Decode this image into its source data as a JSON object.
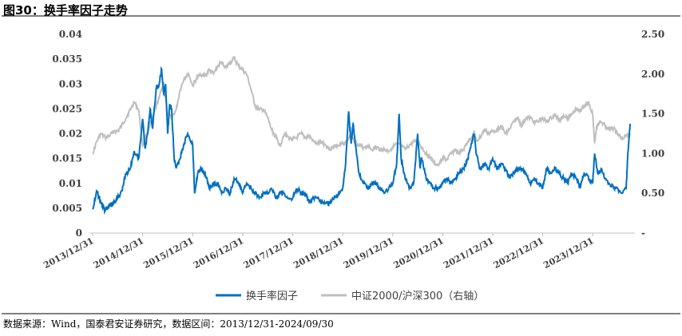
{
  "title": "图30：换手率因子走势",
  "source": "数据来源：Wind，国泰君安证券研究，数据区间：2013/12/31-2024/09/30",
  "colors": {
    "factor": "#0070C0",
    "index": "#BFBFBF",
    "axis": "#BFBFBF",
    "text": "#404040"
  },
  "chart_data": {
    "type": "line",
    "x_ticks": [
      "2013/12/31",
      "2014/12/31",
      "2015/12/31",
      "2016/12/31",
      "2017/12/31",
      "2018/12/31",
      "2019/12/31",
      "2020/12/31",
      "2021/12/31",
      "2022/12/31",
      "2023/12/31"
    ],
    "x_range": [
      "2013/12/31",
      "2024/09/30"
    ],
    "y_left": {
      "ticks": [
        "0.04",
        "0.035",
        "0.03",
        "0.025",
        "0.02",
        "0.015",
        "0.01",
        "0.005",
        "0"
      ],
      "range": [
        0,
        0.04
      ]
    },
    "y_right": {
      "ticks": [
        "2.50",
        "2.00",
        "1.50",
        "1.00",
        "0.50",
        "-"
      ],
      "range": [
        0,
        2.5
      ]
    },
    "grid": false,
    "legend": "bottom",
    "series": [
      {
        "name": "换手率因子",
        "axis": "left",
        "points": [
          [
            2014.0,
            0.0048
          ],
          [
            2014.08,
            0.0085
          ],
          [
            2014.17,
            0.006
          ],
          [
            2014.25,
            0.0045
          ],
          [
            2014.33,
            0.0055
          ],
          [
            2014.42,
            0.006
          ],
          [
            2014.5,
            0.007
          ],
          [
            2014.58,
            0.0085
          ],
          [
            2014.67,
            0.012
          ],
          [
            2014.75,
            0.013
          ],
          [
            2014.83,
            0.0165
          ],
          [
            2014.92,
            0.015
          ],
          [
            2015.0,
            0.023
          ],
          [
            2015.05,
            0.017
          ],
          [
            2015.1,
            0.02
          ],
          [
            2015.15,
            0.025
          ],
          [
            2015.2,
            0.021
          ],
          [
            2015.27,
            0.029
          ],
          [
            2015.33,
            0.03
          ],
          [
            2015.38,
            0.033
          ],
          [
            2015.42,
            0.028
          ],
          [
            2015.46,
            0.03
          ],
          [
            2015.5,
            0.02
          ],
          [
            2015.54,
            0.026
          ],
          [
            2015.58,
            0.025
          ],
          [
            2015.63,
            0.015
          ],
          [
            2015.67,
            0.013
          ],
          [
            2015.75,
            0.015
          ],
          [
            2015.83,
            0.018
          ],
          [
            2015.9,
            0.02
          ],
          [
            2016.0,
            0.018
          ],
          [
            2016.04,
            0.008
          ],
          [
            2016.1,
            0.012
          ],
          [
            2016.17,
            0.013
          ],
          [
            2016.25,
            0.012
          ],
          [
            2016.33,
            0.009
          ],
          [
            2016.42,
            0.01
          ],
          [
            2016.5,
            0.01
          ],
          [
            2016.58,
            0.008
          ],
          [
            2016.67,
            0.009
          ],
          [
            2016.75,
            0.008
          ],
          [
            2016.83,
            0.011
          ],
          [
            2016.92,
            0.01
          ],
          [
            2017.0,
            0.008
          ],
          [
            2017.08,
            0.01
          ],
          [
            2017.17,
            0.009
          ],
          [
            2017.25,
            0.008
          ],
          [
            2017.33,
            0.007
          ],
          [
            2017.42,
            0.008
          ],
          [
            2017.5,
            0.008
          ],
          [
            2017.58,
            0.009
          ],
          [
            2017.67,
            0.007
          ],
          [
            2017.75,
            0.008
          ],
          [
            2017.83,
            0.008
          ],
          [
            2017.92,
            0.007
          ],
          [
            2018.0,
            0.007
          ],
          [
            2018.08,
            0.009
          ],
          [
            2018.17,
            0.008
          ],
          [
            2018.25,
            0.008
          ],
          [
            2018.33,
            0.006
          ],
          [
            2018.42,
            0.007
          ],
          [
            2018.5,
            0.007
          ],
          [
            2018.58,
            0.006
          ],
          [
            2018.67,
            0.006
          ],
          [
            2018.75,
            0.006
          ],
          [
            2018.83,
            0.007
          ],
          [
            2018.92,
            0.008
          ],
          [
            2019.0,
            0.009
          ],
          [
            2019.06,
            0.014
          ],
          [
            2019.12,
            0.0245
          ],
          [
            2019.17,
            0.018
          ],
          [
            2019.21,
            0.022
          ],
          [
            2019.25,
            0.018
          ],
          [
            2019.33,
            0.012
          ],
          [
            2019.42,
            0.01
          ],
          [
            2019.5,
            0.009
          ],
          [
            2019.58,
            0.01
          ],
          [
            2019.67,
            0.01
          ],
          [
            2019.75,
            0.009
          ],
          [
            2019.83,
            0.008
          ],
          [
            2019.92,
            0.009
          ],
          [
            2020.0,
            0.01
          ],
          [
            2020.08,
            0.014
          ],
          [
            2020.13,
            0.024
          ],
          [
            2020.17,
            0.015
          ],
          [
            2020.25,
            0.011
          ],
          [
            2020.33,
            0.009
          ],
          [
            2020.42,
            0.01
          ],
          [
            2020.5,
            0.02
          ],
          [
            2020.55,
            0.013
          ],
          [
            2020.58,
            0.015
          ],
          [
            2020.67,
            0.011
          ],
          [
            2020.75,
            0.01
          ],
          [
            2020.83,
            0.009
          ],
          [
            2020.92,
            0.009
          ],
          [
            2021.0,
            0.01
          ],
          [
            2021.08,
            0.011
          ],
          [
            2021.17,
            0.01
          ],
          [
            2021.25,
            0.011
          ],
          [
            2021.33,
            0.012
          ],
          [
            2021.42,
            0.013
          ],
          [
            2021.5,
            0.015
          ],
          [
            2021.58,
            0.018
          ],
          [
            2021.63,
            0.02
          ],
          [
            2021.67,
            0.016
          ],
          [
            2021.75,
            0.013
          ],
          [
            2021.83,
            0.014
          ],
          [
            2021.92,
            0.013
          ],
          [
            2022.0,
            0.015
          ],
          [
            2022.08,
            0.013
          ],
          [
            2022.17,
            0.014
          ],
          [
            2022.25,
            0.013
          ],
          [
            2022.33,
            0.011
          ],
          [
            2022.42,
            0.012
          ],
          [
            2022.5,
            0.013
          ],
          [
            2022.58,
            0.013
          ],
          [
            2022.67,
            0.012
          ],
          [
            2022.75,
            0.01
          ],
          [
            2022.83,
            0.011
          ],
          [
            2022.92,
            0.01
          ],
          [
            2023.0,
            0.009
          ],
          [
            2023.08,
            0.013
          ],
          [
            2023.17,
            0.012
          ],
          [
            2023.25,
            0.013
          ],
          [
            2023.33,
            0.012
          ],
          [
            2023.42,
            0.011
          ],
          [
            2023.5,
            0.01
          ],
          [
            2023.58,
            0.012
          ],
          [
            2023.67,
            0.011
          ],
          [
            2023.75,
            0.009
          ],
          [
            2023.83,
            0.012
          ],
          [
            2023.92,
            0.011
          ],
          [
            2024.0,
            0.01
          ],
          [
            2024.04,
            0.016
          ],
          [
            2024.1,
            0.012
          ],
          [
            2024.17,
            0.013
          ],
          [
            2024.25,
            0.011
          ],
          [
            2024.33,
            0.01
          ],
          [
            2024.42,
            0.009
          ],
          [
            2024.5,
            0.009
          ],
          [
            2024.58,
            0.008
          ],
          [
            2024.67,
            0.009
          ],
          [
            2024.7,
            0.015
          ],
          [
            2024.75,
            0.022
          ]
        ]
      },
      {
        "name": "中证2000/沪深300（右轴）",
        "axis": "right",
        "points": [
          [
            2014.0,
            1.0
          ],
          [
            2014.08,
            1.15
          ],
          [
            2014.17,
            1.25
          ],
          [
            2014.25,
            1.2
          ],
          [
            2014.33,
            1.22
          ],
          [
            2014.42,
            1.28
          ],
          [
            2014.5,
            1.28
          ],
          [
            2014.58,
            1.35
          ],
          [
            2014.67,
            1.45
          ],
          [
            2014.75,
            1.55
          ],
          [
            2014.83,
            1.65
          ],
          [
            2014.92,
            1.55
          ],
          [
            2015.0,
            1.1
          ],
          [
            2015.08,
            1.25
          ],
          [
            2015.17,
            1.4
          ],
          [
            2015.25,
            1.55
          ],
          [
            2015.33,
            1.7
          ],
          [
            2015.42,
            1.9
          ],
          [
            2015.5,
            1.5
          ],
          [
            2015.58,
            1.45
          ],
          [
            2015.67,
            1.55
          ],
          [
            2015.75,
            1.8
          ],
          [
            2015.83,
            1.95
          ],
          [
            2015.92,
            2.0
          ],
          [
            2016.0,
            1.85
          ],
          [
            2016.08,
            1.95
          ],
          [
            2016.17,
            2.0
          ],
          [
            2016.25,
            1.98
          ],
          [
            2016.33,
            2.05
          ],
          [
            2016.42,
            2.0
          ],
          [
            2016.5,
            2.1
          ],
          [
            2016.58,
            2.15
          ],
          [
            2016.67,
            2.08
          ],
          [
            2016.75,
            2.15
          ],
          [
            2016.83,
            2.2
          ],
          [
            2016.92,
            2.1
          ],
          [
            2017.0,
            2.05
          ],
          [
            2017.08,
            2.0
          ],
          [
            2017.17,
            1.8
          ],
          [
            2017.25,
            1.6
          ],
          [
            2017.33,
            1.55
          ],
          [
            2017.42,
            1.55
          ],
          [
            2017.5,
            1.45
          ],
          [
            2017.58,
            1.3
          ],
          [
            2017.67,
            1.2
          ],
          [
            2017.75,
            1.1
          ],
          [
            2017.83,
            1.25
          ],
          [
            2017.92,
            1.2
          ],
          [
            2018.0,
            1.18
          ],
          [
            2018.08,
            1.2
          ],
          [
            2018.17,
            1.25
          ],
          [
            2018.25,
            1.2
          ],
          [
            2018.33,
            1.22
          ],
          [
            2018.42,
            1.15
          ],
          [
            2018.5,
            1.12
          ],
          [
            2018.58,
            1.15
          ],
          [
            2018.67,
            1.1
          ],
          [
            2018.75,
            1.05
          ],
          [
            2018.83,
            1.1
          ],
          [
            2018.92,
            1.1
          ],
          [
            2019.0,
            1.12
          ],
          [
            2019.08,
            1.15
          ],
          [
            2019.17,
            1.25
          ],
          [
            2019.25,
            1.15
          ],
          [
            2019.33,
            1.1
          ],
          [
            2019.42,
            1.08
          ],
          [
            2019.5,
            1.1
          ],
          [
            2019.58,
            1.05
          ],
          [
            2019.67,
            1.08
          ],
          [
            2019.75,
            1.05
          ],
          [
            2019.83,
            1.05
          ],
          [
            2019.92,
            1.03
          ],
          [
            2020.0,
            1.08
          ],
          [
            2020.08,
            1.12
          ],
          [
            2020.17,
            1.1
          ],
          [
            2020.25,
            1.05
          ],
          [
            2020.33,
            1.1
          ],
          [
            2020.42,
            1.15
          ],
          [
            2020.5,
            1.15
          ],
          [
            2020.58,
            1.08
          ],
          [
            2020.67,
            1.0
          ],
          [
            2020.75,
            0.95
          ],
          [
            2020.83,
            0.88
          ],
          [
            2020.92,
            0.85
          ],
          [
            2021.0,
            0.95
          ],
          [
            2021.08,
            0.92
          ],
          [
            2021.17,
            1.0
          ],
          [
            2021.25,
            1.05
          ],
          [
            2021.33,
            1.0
          ],
          [
            2021.42,
            1.05
          ],
          [
            2021.5,
            1.15
          ],
          [
            2021.58,
            1.2
          ],
          [
            2021.63,
            1.28
          ],
          [
            2021.67,
            1.15
          ],
          [
            2021.75,
            1.2
          ],
          [
            2021.83,
            1.3
          ],
          [
            2021.92,
            1.25
          ],
          [
            2022.0,
            1.28
          ],
          [
            2022.08,
            1.3
          ],
          [
            2022.17,
            1.35
          ],
          [
            2022.25,
            1.25
          ],
          [
            2022.33,
            1.3
          ],
          [
            2022.42,
            1.4
          ],
          [
            2022.5,
            1.45
          ],
          [
            2022.58,
            1.35
          ],
          [
            2022.67,
            1.45
          ],
          [
            2022.75,
            1.45
          ],
          [
            2022.83,
            1.4
          ],
          [
            2022.92,
            1.4
          ],
          [
            2023.0,
            1.45
          ],
          [
            2023.08,
            1.4
          ],
          [
            2023.17,
            1.45
          ],
          [
            2023.25,
            1.48
          ],
          [
            2023.33,
            1.42
          ],
          [
            2023.42,
            1.48
          ],
          [
            2023.5,
            1.45
          ],
          [
            2023.58,
            1.5
          ],
          [
            2023.67,
            1.55
          ],
          [
            2023.75,
            1.55
          ],
          [
            2023.83,
            1.6
          ],
          [
            2023.92,
            1.65
          ],
          [
            2024.0,
            1.5
          ],
          [
            2024.04,
            1.13
          ],
          [
            2024.08,
            1.35
          ],
          [
            2024.17,
            1.4
          ],
          [
            2024.25,
            1.35
          ],
          [
            2024.33,
            1.3
          ],
          [
            2024.42,
            1.32
          ],
          [
            2024.5,
            1.25
          ],
          [
            2024.58,
            1.2
          ],
          [
            2024.67,
            1.22
          ],
          [
            2024.75,
            1.25
          ]
        ]
      }
    ]
  }
}
